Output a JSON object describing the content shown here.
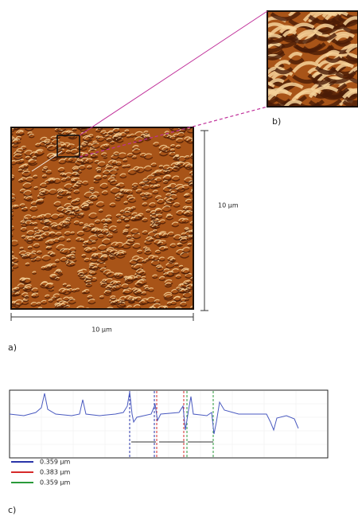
{
  "figure": {
    "panel_a": {
      "label": "a)",
      "scale_horizontal": "10 µm",
      "scale_vertical": "10 µm"
    },
    "panel_b": {
      "label": "b)"
    },
    "panel_c": {
      "label": "c)",
      "legend": [
        {
          "label": "0.359 µm",
          "color": "#2a35a8"
        },
        {
          "label": "0.383 µm",
          "color": "#d62a2a"
        },
        {
          "label": "0.359 µm",
          "color": "#2a9a3a"
        }
      ]
    }
  }
}
